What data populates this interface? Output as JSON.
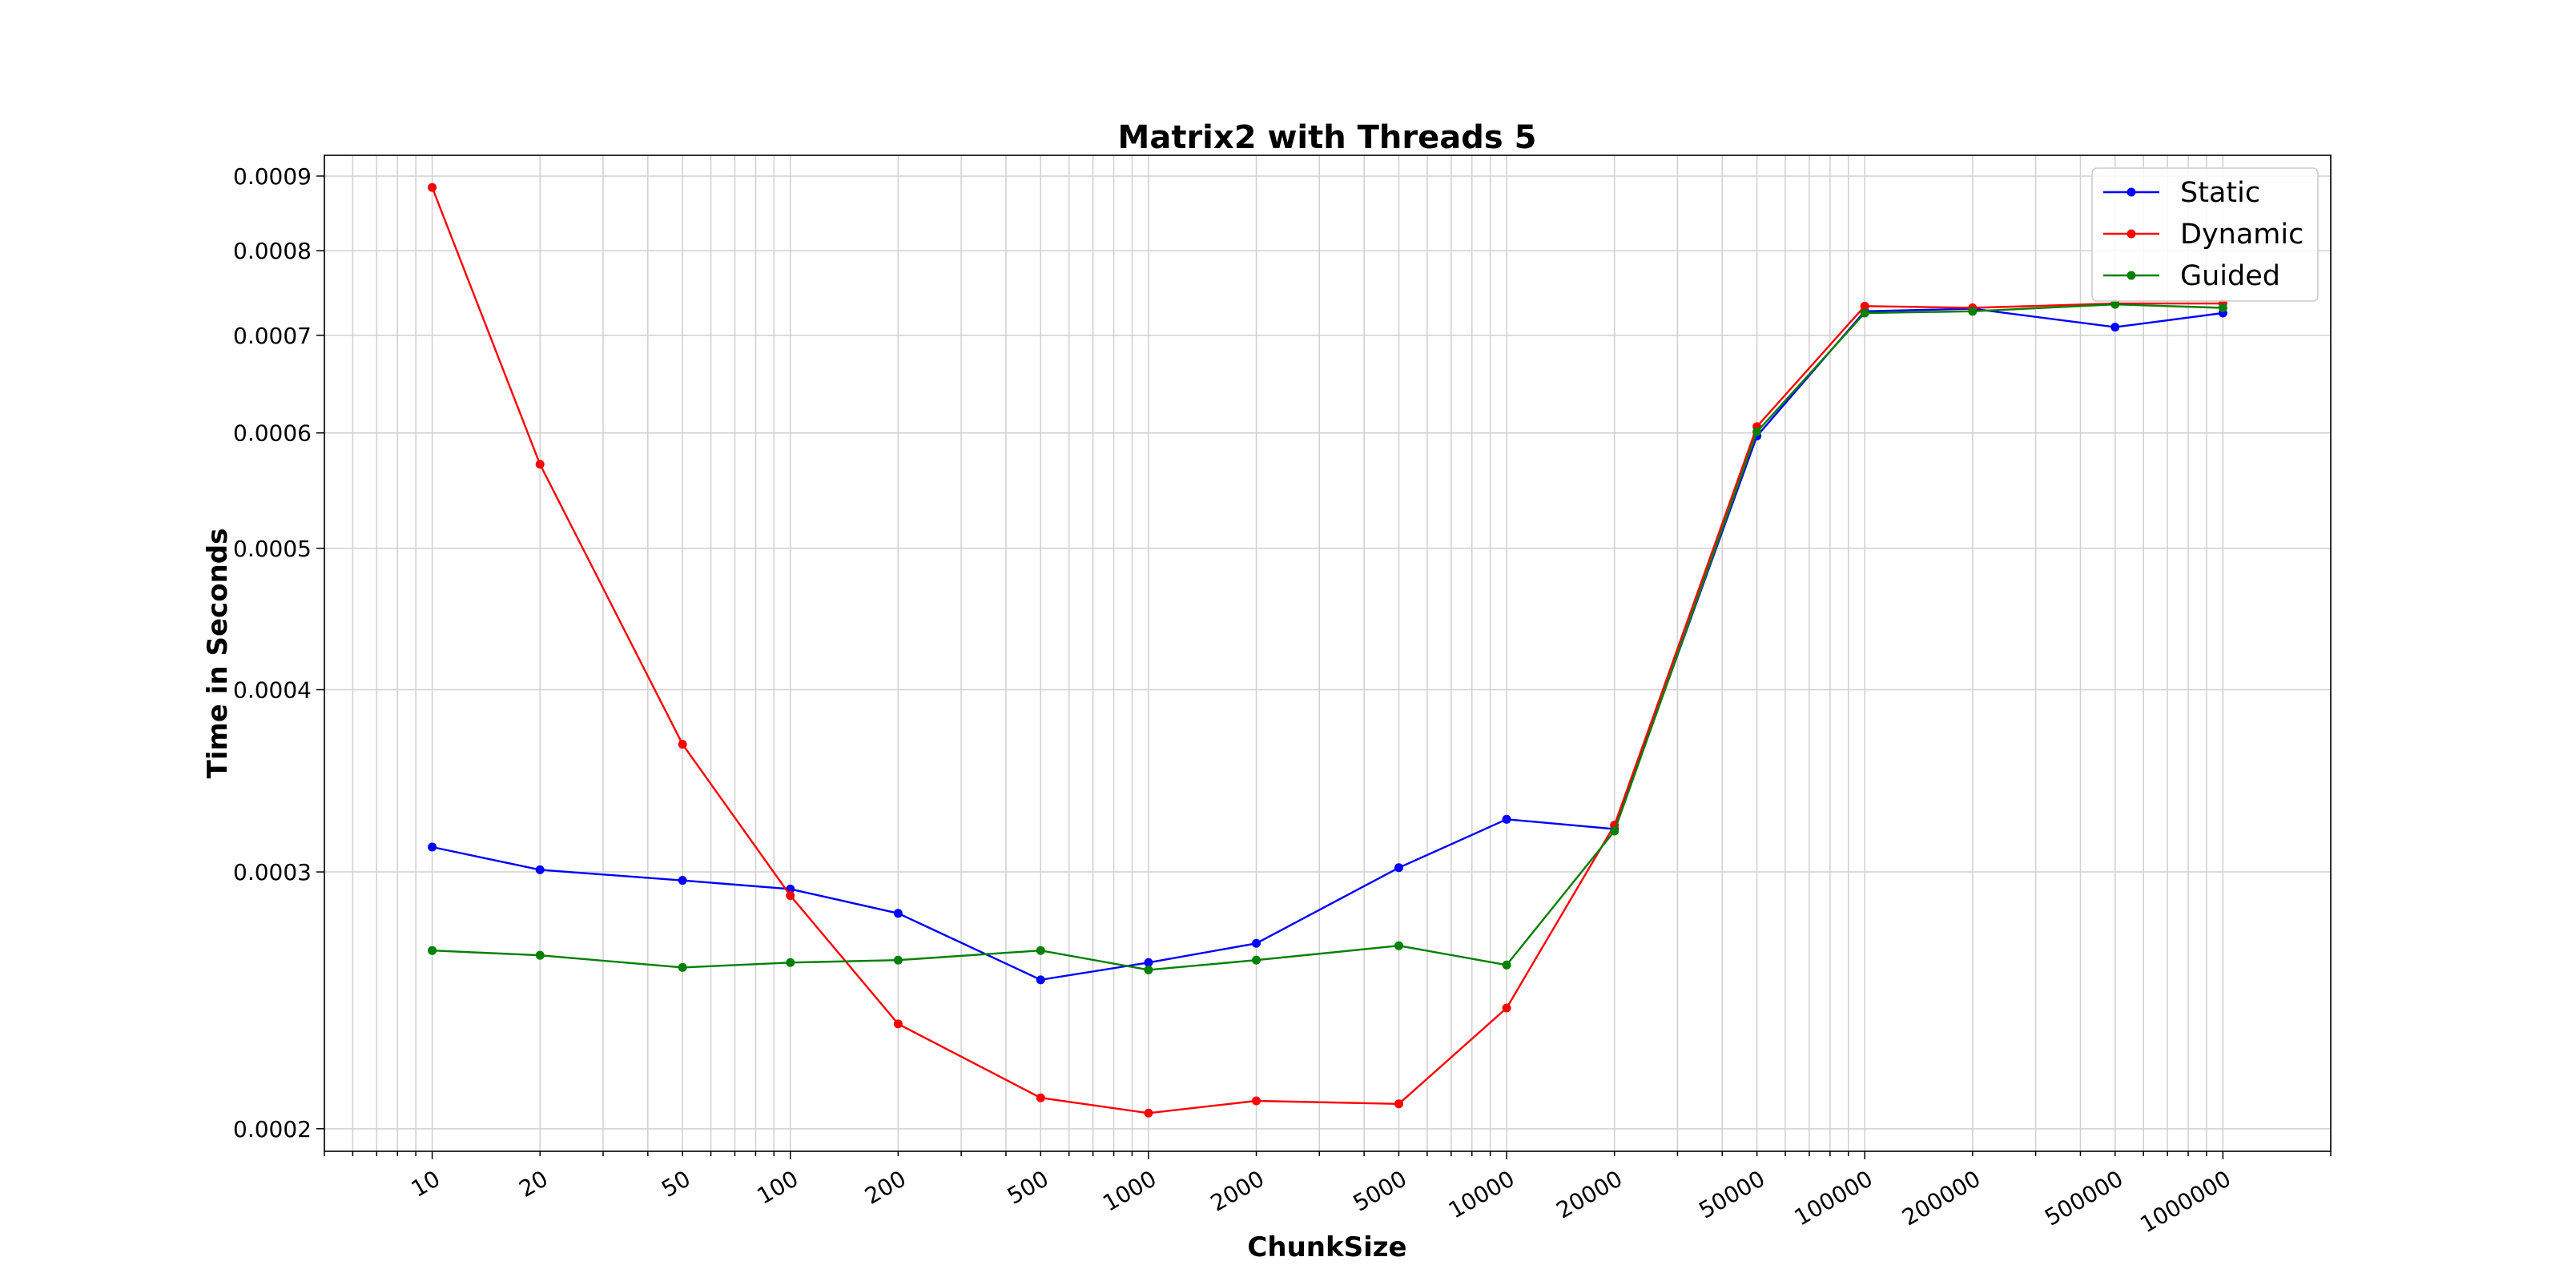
{
  "chart_data": {
    "type": "line",
    "title": "Matrix2 with Threads 5",
    "xlabel": "ChunkSize",
    "ylabel": "Time in Seconds",
    "x_scale": "log",
    "y_scale": "log",
    "xlim": [
      5,
      2000000
    ],
    "ylim": [
      0.000193,
      0.00093
    ],
    "grid": "on",
    "legend_position": "top-right",
    "x": [
      10,
      20,
      50,
      100,
      200,
      500,
      1000,
      2000,
      5000,
      10000,
      20000,
      50000,
      100000,
      200000,
      500000,
      1000000
    ],
    "x_tick_labels": [
      "10",
      "20",
      "50",
      "100",
      "200",
      "500",
      "1000",
      "2000",
      "5000",
      "10000",
      "20000",
      "50000",
      "100000",
      "200000",
      "500000",
      "1000000"
    ],
    "y_ticks": [
      0.0002,
      0.0003,
      0.0004,
      0.0005,
      0.0006,
      0.0007,
      0.0008,
      0.0009
    ],
    "y_tick_labels": [
      "0.0002",
      "0.0003",
      "0.0004",
      "0.0005",
      "0.0006",
      "0.0007",
      "0.0008",
      "0.0009"
    ],
    "series": [
      {
        "name": "Static",
        "color": "#0000ff",
        "values": [
          0.000312,
          0.000301,
          0.000296,
          0.000292,
          0.000281,
          0.000253,
          0.00026,
          0.000268,
          0.000302,
          0.000326,
          0.000321,
          0.000597,
          0.000727,
          0.00073,
          0.000709,
          0.000725
        ]
      },
      {
        "name": "Dynamic",
        "color": "#ff0000",
        "values": [
          0.000884,
          0.000571,
          0.000367,
          0.000289,
          0.000236,
          0.00021,
          0.000205,
          0.000209,
          0.000208,
          0.000242,
          0.000323,
          0.000606,
          0.000733,
          0.000731,
          0.000736,
          0.000736
        ]
      },
      {
        "name": "Guided",
        "color": "#008000",
        "values": [
          0.000265,
          0.000263,
          0.000258,
          0.00026,
          0.000261,
          0.000265,
          0.000257,
          0.000261,
          0.000267,
          0.000259,
          0.00032,
          0.000601,
          0.000725,
          0.000727,
          0.000735,
          0.000731
        ]
      }
    ]
  }
}
